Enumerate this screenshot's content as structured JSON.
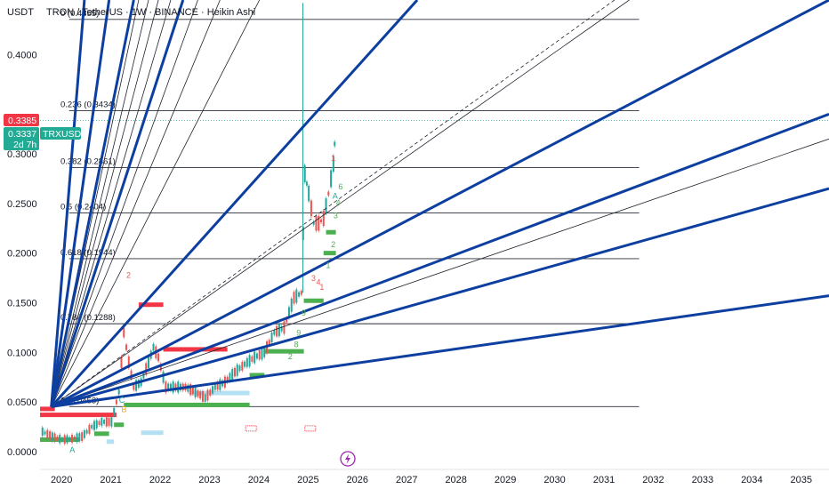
{
  "header": {
    "title": "TRON / TetherUS · 1W · BINANCE · Heikin Ashi",
    "unit": "USDT"
  },
  "price_badges": {
    "last": {
      "value": "0.3385",
      "color": "#f23645"
    },
    "symbol": {
      "value": "0.3337",
      "label": "TRXUSDT",
      "countdown": "2d 7h",
      "color": "#22ab94"
    }
  },
  "colors": {
    "fan_thick": "#0d3fa0",
    "fan_thin": "#1e222d",
    "fib_line": "#2a2e39",
    "candle_up": "#26a69a",
    "candle_down": "#ef5350",
    "sr_red": "#f23645",
    "sr_green": "#4caf50",
    "sr_light": "#b3e0f2",
    "dotted": "#22ab94"
  },
  "chart_data": {
    "type": "line",
    "yaxis": {
      "ticks": [
        "0.0000",
        "0.0500",
        "0.1000",
        "0.1500",
        "0.2000",
        "0.2500",
        "0.3000",
        "0.4000"
      ],
      "range": [
        -0.018,
        0.455
      ]
    },
    "xaxis": {
      "ticks": [
        "2020",
        "2021",
        "2022",
        "2023",
        "2024",
        "2025",
        "2026",
        "2027",
        "2028",
        "2029",
        "2030",
        "2031",
        "2032",
        "2033",
        "2034",
        "2035"
      ],
      "range": [
        2019.55,
        2035.55
      ]
    },
    "fib_levels": [
      {
        "label": "0 (0.4355)",
        "value": 0.4355
      },
      {
        "label": "0.236 (0.3434)",
        "value": 0.3434
      },
      {
        "label": "0.382 (0.2861)",
        "value": 0.2861
      },
      {
        "label": "0.5 (0.2404)",
        "value": 0.2404
      },
      {
        "label": "0.618 (0.1944)",
        "value": 0.1944
      },
      {
        "label": "0.786 (0.1288)",
        "value": 0.1288
      },
      {
        "label": "1 (0.0453)",
        "value": 0.0453
      }
    ],
    "fib_range": {
      "x_start": 2019.6,
      "x_end": 2031.7
    },
    "gann_fan": {
      "origin": {
        "x": 2019.78,
        "y": 0.0453
      },
      "thick_targets": [
        {
          "x": 2020.45,
          "y": 0.455
        },
        {
          "x": 2020.95,
          "y": 0.455
        },
        {
          "x": 2021.45,
          "y": 0.455
        },
        {
          "x": 2022.45,
          "y": 0.455
        },
        {
          "x": 2027.2,
          "y": 0.455
        },
        {
          "x": 2035.55,
          "y": 0.455
        },
        {
          "x": 2035.55,
          "y": 0.34
        },
        {
          "x": 2035.55,
          "y": 0.265
        },
        {
          "x": 2035.55,
          "y": 0.157
        }
      ],
      "thin_targets": [
        {
          "x": 2021.55,
          "y": 0.455
        },
        {
          "x": 2021.75,
          "y": 0.455
        },
        {
          "x": 2021.95,
          "y": 0.455
        },
        {
          "x": 2022.2,
          "y": 0.455
        },
        {
          "x": 2022.75,
          "y": 0.455
        },
        {
          "x": 2023.2,
          "y": 0.455
        },
        {
          "x": 2024.0,
          "y": 0.455
        },
        {
          "x": 2031.5,
          "y": 0.455
        },
        {
          "x": 2035.55,
          "y": 0.315
        }
      ],
      "dashed_target": {
        "x": 2031.2,
        "y": 0.455
      }
    },
    "series": [
      {
        "name": "TRXUSDT",
        "x": [
          2019.6,
          2019.8,
          2020.0,
          2020.2,
          2020.4,
          2020.6,
          2020.8,
          2021.0,
          2021.15,
          2021.25,
          2021.35,
          2021.45,
          2021.6,
          2021.75,
          2021.85,
          2021.95,
          2022.1,
          2022.3,
          2022.5,
          2022.7,
          2022.9,
          2023.1,
          2023.3,
          2023.5,
          2023.7,
          2023.9,
          2024.1,
          2024.3,
          2024.5,
          2024.7,
          2024.85,
          2024.92,
          2025.0,
          2025.1,
          2025.2,
          2025.3,
          2025.4,
          2025.5,
          2025.55
        ],
        "y": [
          0.02,
          0.015,
          0.012,
          0.013,
          0.015,
          0.025,
          0.03,
          0.03,
          0.06,
          0.12,
          0.09,
          0.065,
          0.07,
          0.09,
          0.105,
          0.095,
          0.065,
          0.065,
          0.065,
          0.06,
          0.054,
          0.065,
          0.07,
          0.08,
          0.088,
          0.095,
          0.1,
          0.12,
          0.125,
          0.155,
          0.16,
          0.28,
          0.26,
          0.23,
          0.23,
          0.235,
          0.26,
          0.29,
          0.33
        ]
      }
    ],
    "sr_zones": [
      {
        "type": "red",
        "x1": 2019.55,
        "x2": 2021.1,
        "y": 0.037
      },
      {
        "type": "red",
        "x1": 2019.55,
        "x2": 2019.85,
        "y": 0.043
      },
      {
        "type": "red",
        "x1": 2021.55,
        "x2": 2022.05,
        "y": 0.148
      },
      {
        "type": "red",
        "x1": 2022.05,
        "x2": 2023.35,
        "y": 0.103
      },
      {
        "type": "green",
        "x1": 2019.55,
        "x2": 2020.35,
        "y": 0.012
      },
      {
        "type": "green",
        "x1": 2020.65,
        "x2": 2020.95,
        "y": 0.018
      },
      {
        "type": "green",
        "x1": 2021.05,
        "x2": 2021.25,
        "y": 0.027
      },
      {
        "type": "green",
        "x1": 2021.25,
        "x2": 2023.8,
        "y": 0.047
      },
      {
        "type": "green",
        "x1": 2023.8,
        "x2": 2024.1,
        "y": 0.077
      },
      {
        "type": "green",
        "x1": 2024.1,
        "x2": 2024.9,
        "y": 0.101
      },
      {
        "type": "green",
        "x1": 2024.9,
        "x2": 2025.3,
        "y": 0.152
      },
      {
        "type": "green",
        "x1": 2025.3,
        "x2": 2025.55,
        "y": 0.2
      },
      {
        "type": "green",
        "x1": 2025.35,
        "x2": 2025.55,
        "y": 0.221
      },
      {
        "type": "light",
        "x1": 2021.6,
        "x2": 2022.05,
        "y": 0.019
      },
      {
        "type": "light",
        "x1": 2020.9,
        "x2": 2021.05,
        "y": 0.01
      },
      {
        "type": "light",
        "x1": 2022.6,
        "x2": 2023.8,
        "y": 0.059
      }
    ],
    "markers": [
      {
        "text": "A",
        "x": 2020.15,
        "y": -0.001,
        "color": "#26a69a"
      },
      {
        "text": "B",
        "x": 2021.2,
        "y": 0.04,
        "color": "#f7a600"
      },
      {
        "text": "C",
        "x": 2021.15,
        "y": 0.049,
        "color": "#26a69a"
      },
      {
        "text": "2",
        "x": 2021.3,
        "y": 0.175,
        "color": "#ef5350"
      },
      {
        "text": "9",
        "x": 2024.85,
        "y": 0.137,
        "color": "#4caf50"
      },
      {
        "text": "9",
        "x": 2024.75,
        "y": 0.117,
        "color": "#4caf50"
      },
      {
        "text": "8",
        "x": 2024.7,
        "y": 0.105,
        "color": "#4caf50"
      },
      {
        "text": "2",
        "x": 2024.58,
        "y": 0.093,
        "color": "#4caf50"
      },
      {
        "text": "3",
        "x": 2025.05,
        "y": 0.172,
        "color": "#ef5350"
      },
      {
        "text": "4",
        "x": 2025.15,
        "y": 0.168,
        "color": "#ef5350"
      },
      {
        "text": "1",
        "x": 2025.22,
        "y": 0.163,
        "color": "#ef5350"
      },
      {
        "text": "1",
        "x": 2025.35,
        "y": 0.185,
        "color": "#4caf50"
      },
      {
        "text": "2",
        "x": 2025.45,
        "y": 0.206,
        "color": "#4caf50"
      },
      {
        "text": "3",
        "x": 2025.5,
        "y": 0.235,
        "color": "#4caf50"
      },
      {
        "text": "4",
        "x": 2025.55,
        "y": 0.248,
        "color": "#4caf50"
      },
      {
        "text": "6",
        "x": 2025.6,
        "y": 0.264,
        "color": "#4caf50"
      },
      {
        "text": "1",
        "x": 2025.45,
        "y": 0.293,
        "color": "#ef5350"
      },
      {
        "text": "A",
        "x": 2025.48,
        "y": 0.255,
        "color": "#26a69a"
      }
    ]
  }
}
